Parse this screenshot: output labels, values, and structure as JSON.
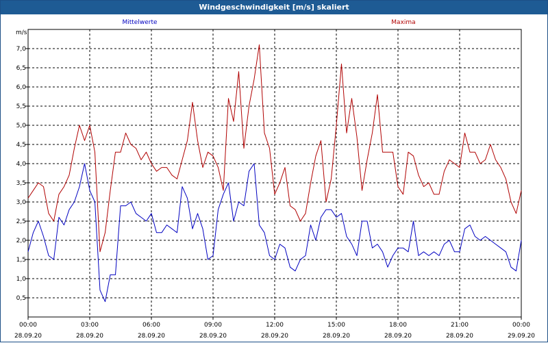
{
  "window": {
    "title": "Windgeschwindigkeit [m/s] skaliert"
  },
  "colors": {
    "mean": "#0000c0",
    "max": "#b00000",
    "grid": "#000000",
    "titlebar": "#1e5b94"
  },
  "chart_data": {
    "type": "line",
    "ylabel": "m/s",
    "ylim": [
      0,
      7.5
    ],
    "xlim_hours": [
      0,
      24
    ],
    "grid": true,
    "legend": {
      "mean": "Mittelwerte",
      "max": "Maxima"
    },
    "y_ticks": [
      "0,5",
      "1,0",
      "1,5",
      "2,0",
      "2,5",
      "3,0",
      "3,5",
      "4,0",
      "4,5",
      "5,0",
      "5,5",
      "6,0",
      "6,5",
      "7,0"
    ],
    "x_ticks": [
      {
        "time": "00:00",
        "date": "28.09.20"
      },
      {
        "time": "03:00",
        "date": "28.09.20"
      },
      {
        "time": "06:00",
        "date": "28.09.20"
      },
      {
        "time": "09:00",
        "date": "28.09.20"
      },
      {
        "time": "12:00",
        "date": "28.09.20"
      },
      {
        "time": "15:00",
        "date": "28.09.20"
      },
      {
        "time": "18:00",
        "date": "28.09.20"
      },
      {
        "time": "21:00",
        "date": "28.09.20"
      },
      {
        "time": "00:00",
        "date": "29.09.20"
      }
    ],
    "series": [
      {
        "name": "Maxima",
        "color": "#b00000",
        "x": [
          0,
          0.25,
          0.5,
          0.75,
          1,
          1.25,
          1.5,
          1.75,
          2,
          2.25,
          2.5,
          2.75,
          3,
          3.25,
          3.5,
          3.75,
          4,
          4.25,
          4.5,
          4.75,
          5,
          5.25,
          5.5,
          5.75,
          6,
          6.25,
          6.5,
          6.75,
          7,
          7.25,
          7.5,
          7.75,
          8,
          8.25,
          8.5,
          8.75,
          9,
          9.25,
          9.5,
          9.75,
          10,
          10.25,
          10.5,
          10.75,
          11,
          11.25,
          11.5,
          11.75,
          12,
          12.25,
          12.5,
          12.75,
          13,
          13.25,
          13.5,
          13.75,
          14,
          14.25,
          14.5,
          14.75,
          15,
          15.25,
          15.5,
          15.75,
          16,
          16.25,
          16.5,
          16.75,
          17,
          17.25,
          17.5,
          17.75,
          18,
          18.25,
          18.5,
          18.75,
          19,
          19.25,
          19.5,
          19.75,
          20,
          20.25,
          20.5,
          20.75,
          21,
          21.25,
          21.5,
          21.75,
          22,
          22.25,
          22.5,
          22.75,
          23,
          23.25,
          23.5,
          23.75,
          24
        ],
        "values": [
          3.1,
          3.3,
          3.5,
          3.4,
          2.7,
          2.5,
          3.2,
          3.4,
          3.7,
          4.4,
          5.0,
          4.6,
          5.0,
          4.3,
          1.7,
          2.2,
          3.3,
          4.3,
          4.3,
          4.8,
          4.5,
          4.4,
          4.1,
          4.3,
          4.0,
          3.8,
          3.9,
          3.9,
          3.7,
          3.6,
          4.1,
          4.6,
          5.6,
          4.6,
          3.9,
          4.3,
          4.2,
          3.9,
          3.3,
          5.7,
          5.1,
          6.4,
          4.4,
          5.5,
          6.2,
          7.1,
          4.8,
          4.4,
          3.2,
          3.5,
          3.9,
          2.9,
          2.8,
          2.5,
          2.7,
          3.5,
          4.2,
          4.6,
          3.0,
          3.6,
          5.0,
          6.6,
          4.8,
          5.7,
          4.7,
          3.3,
          4.1,
          4.8,
          5.8,
          4.3,
          4.3,
          4.3,
          3.4,
          3.2,
          4.3,
          4.2,
          3.7,
          3.4,
          3.5,
          3.2,
          3.2,
          3.8,
          4.1,
          4.0,
          3.9,
          4.8,
          4.3,
          4.3,
          4.0,
          4.1,
          4.5,
          4.1,
          3.9,
          3.6,
          3.0,
          2.7,
          3.3
        ]
      },
      {
        "name": "Mittelwerte",
        "color": "#0000c0",
        "x": [
          0,
          0.25,
          0.5,
          0.75,
          1,
          1.25,
          1.5,
          1.75,
          2,
          2.25,
          2.5,
          2.75,
          3,
          3.25,
          3.5,
          3.75,
          4,
          4.25,
          4.5,
          4.75,
          5,
          5.25,
          5.5,
          5.75,
          6,
          6.25,
          6.5,
          6.75,
          7,
          7.25,
          7.5,
          7.75,
          8,
          8.25,
          8.5,
          8.75,
          9,
          9.25,
          9.5,
          9.75,
          10,
          10.25,
          10.5,
          10.75,
          11,
          11.25,
          11.5,
          11.75,
          12,
          12.25,
          12.5,
          12.75,
          13,
          13.25,
          13.5,
          13.75,
          14,
          14.25,
          14.5,
          14.75,
          15,
          15.25,
          15.5,
          15.75,
          16,
          16.25,
          16.5,
          16.75,
          17,
          17.25,
          17.5,
          17.75,
          18,
          18.25,
          18.5,
          18.75,
          19,
          19.25,
          19.5,
          19.75,
          20,
          20.25,
          20.5,
          20.75,
          21,
          21.25,
          21.5,
          21.75,
          22,
          22.25,
          22.5,
          22.75,
          23,
          23.25,
          23.5,
          23.75,
          24
        ],
        "values": [
          1.7,
          2.2,
          2.5,
          2.1,
          1.6,
          1.5,
          2.6,
          2.4,
          2.8,
          3.0,
          3.4,
          4.0,
          3.3,
          3.0,
          0.7,
          0.4,
          1.1,
          1.1,
          2.9,
          2.9,
          3.0,
          2.7,
          2.6,
          2.5,
          2.7,
          2.2,
          2.2,
          2.4,
          2.3,
          2.2,
          3.4,
          3.1,
          2.3,
          2.7,
          2.3,
          1.5,
          1.6,
          2.8,
          3.2,
          3.5,
          2.5,
          3.0,
          2.9,
          3.8,
          4.0,
          2.4,
          2.2,
          1.6,
          1.5,
          1.9,
          1.8,
          1.3,
          1.2,
          1.5,
          1.6,
          2.4,
          2.0,
          2.6,
          2.8,
          2.8,
          2.6,
          2.7,
          2.1,
          1.9,
          1.6,
          2.5,
          2.5,
          1.8,
          1.9,
          1.7,
          1.3,
          1.6,
          1.8,
          1.8,
          1.7,
          2.5,
          1.6,
          1.7,
          1.6,
          1.7,
          1.6,
          1.9,
          2.0,
          1.7,
          1.7,
          2.3,
          2.4,
          2.1,
          2.0,
          2.1,
          2.0,
          1.9,
          1.8,
          1.7,
          1.3,
          1.2,
          2.0
        ]
      }
    ]
  }
}
